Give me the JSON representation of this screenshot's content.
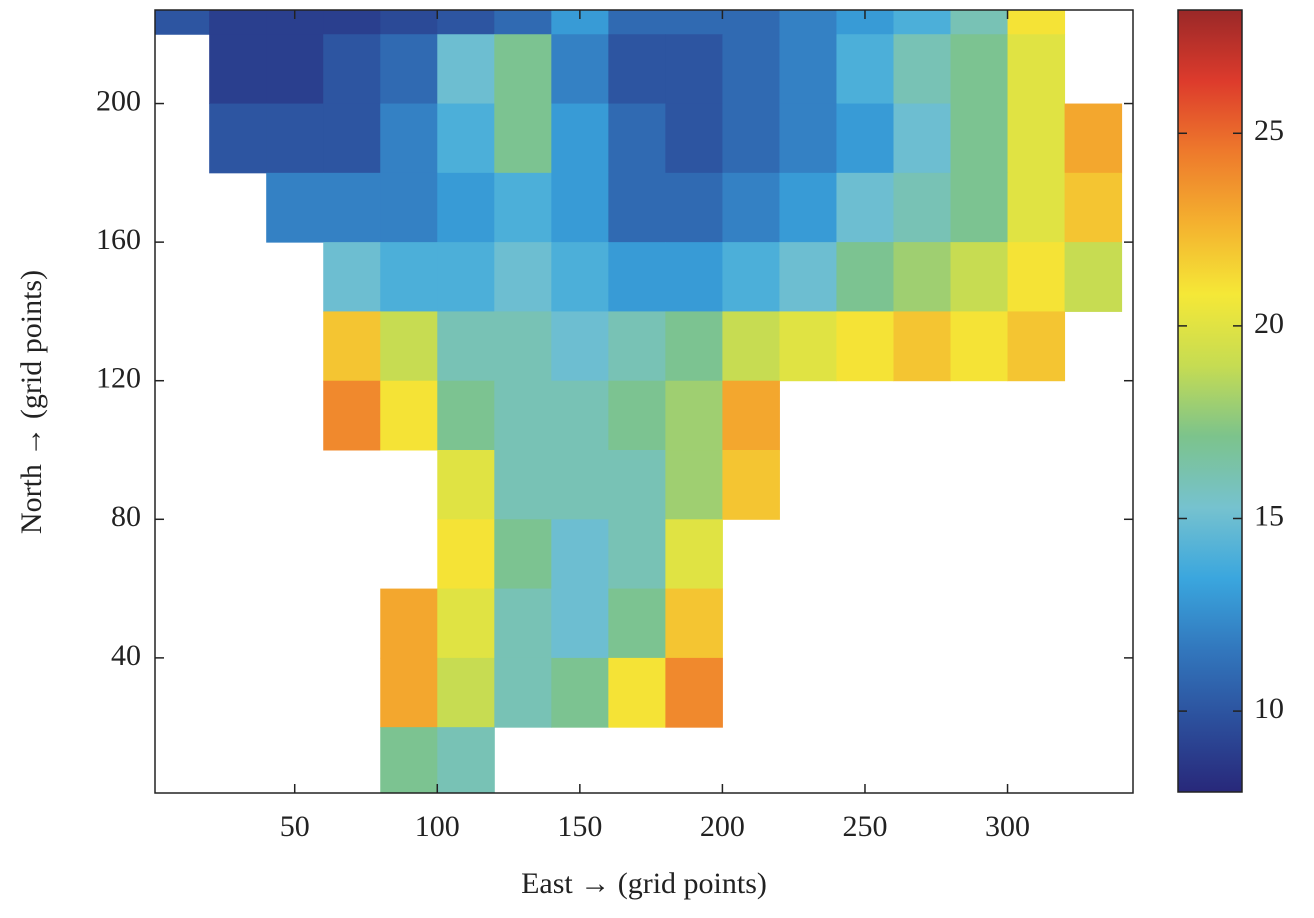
{
  "chart_data": {
    "type": "heatmap",
    "xlabel": "East → (grid points)",
    "ylabel": "North → (grid points)",
    "xlim": [
      1,
      344
    ],
    "xticks": [
      50,
      100,
      150,
      200,
      250,
      300
    ],
    "ylim": [
      1,
      227
    ],
    "yticks": [
      40,
      80,
      120,
      160,
      200
    ],
    "clim": [
      7.9,
      28.2
    ],
    "cticks": [
      10,
      15,
      20,
      25
    ],
    "colormap": [
      "#28287a",
      "#2c4f9c",
      "#3277bd",
      "#3aa6de",
      "#76c2cf",
      "#7cc38c",
      "#c6dc52",
      "#f5e837",
      "#f4b12f",
      "#ee7a2c",
      "#dd3b2c",
      "#9a2828"
    ],
    "x": [
      10,
      30,
      50,
      70,
      90,
      110,
      130,
      150,
      170,
      190,
      210,
      230,
      250,
      270,
      290,
      310,
      330
    ],
    "y": [
      230,
      210,
      190,
      170,
      150,
      130,
      110,
      90,
      70,
      50,
      30,
      10
    ],
    "z": [
      [
        10,
        9,
        9,
        9,
        9.5,
        10,
        11,
        13,
        11,
        11,
        11,
        12,
        13,
        14,
        16,
        21,
        null
      ],
      [
        null,
        9,
        9,
        10,
        11,
        15,
        17,
        12,
        10,
        10,
        11,
        12,
        14,
        16,
        17,
        20,
        null
      ],
      [
        null,
        10,
        10,
        10,
        12,
        14,
        17,
        13,
        11,
        10,
        11,
        12,
        13,
        15,
        17,
        20,
        23
      ],
      [
        null,
        null,
        12,
        12,
        12,
        13,
        14,
        13,
        11,
        11,
        12,
        13,
        15,
        16,
        17,
        20,
        22
      ],
      [
        null,
        null,
        null,
        15,
        14,
        14,
        15,
        14,
        13,
        13,
        14,
        15,
        17,
        18,
        19,
        21,
        19
      ],
      [
        null,
        null,
        null,
        22,
        19,
        16,
        16,
        15,
        16,
        17,
        19,
        20,
        21,
        22,
        21,
        22,
        null
      ],
      [
        null,
        null,
        null,
        24,
        21,
        17,
        16,
        16,
        17,
        18,
        23,
        null,
        null,
        null,
        null,
        null,
        null
      ],
      [
        null,
        null,
        null,
        null,
        null,
        20,
        16,
        16,
        16,
        18,
        22,
        null,
        null,
        null,
        null,
        null,
        null
      ],
      [
        null,
        null,
        null,
        null,
        null,
        21,
        17,
        15,
        16,
        20,
        null,
        null,
        null,
        null,
        null,
        null,
        null
      ],
      [
        null,
        null,
        null,
        null,
        23,
        20,
        16,
        15,
        17,
        22,
        null,
        null,
        null,
        null,
        null,
        null,
        null
      ],
      [
        null,
        null,
        null,
        null,
        23,
        19,
        16,
        17,
        21,
        24,
        null,
        null,
        null,
        null,
        null,
        null,
        null
      ],
      [
        null,
        null,
        null,
        null,
        17,
        16,
        null,
        null,
        null,
        null,
        null,
        null,
        null,
        null,
        null,
        null,
        null
      ]
    ]
  }
}
